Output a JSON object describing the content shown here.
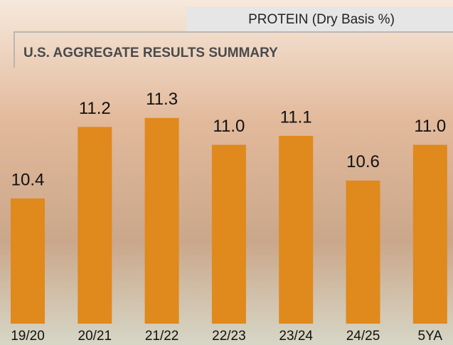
{
  "chart_data": {
    "type": "bar",
    "header": "PROTEIN (Dry Basis %)",
    "title": "U.S. AGGREGATE RESULTS SUMMARY",
    "categories": [
      "19/20",
      "20/21",
      "21/22",
      "22/23",
      "23/24",
      "24/25",
      "5YA"
    ],
    "values": [
      10.4,
      11.2,
      11.3,
      11.0,
      11.1,
      10.6,
      11.0
    ],
    "value_labels": [
      "10.4",
      "11.2",
      "11.3",
      "11.0",
      "11.1",
      "10.6",
      "11.0"
    ],
    "color": "#e0891c",
    "ylim": [
      9,
      12.5
    ]
  }
}
